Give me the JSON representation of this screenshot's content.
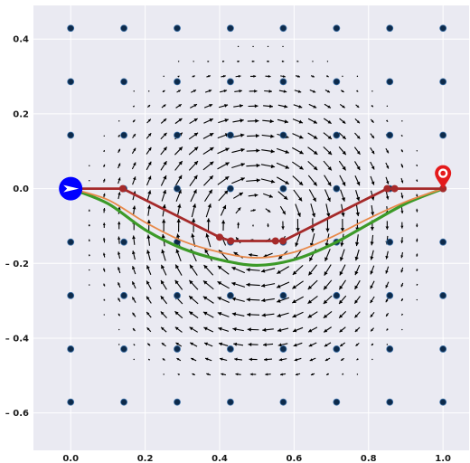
{
  "chart_data": {
    "type": "line",
    "title": "",
    "xlabel": "",
    "ylabel": "",
    "xlim": [
      -0.1,
      1.07
    ],
    "ylim": [
      -0.7,
      0.49
    ],
    "xticks": [
      0.0,
      0.2,
      0.4,
      0.6,
      0.8,
      1.0
    ],
    "xtick_labels": [
      "0.0",
      "0.2",
      "0.4",
      "0.6",
      "0.8",
      "1.0"
    ],
    "yticks": [
      0.4,
      0.2,
      0.0,
      -0.2,
      -0.4,
      -0.6
    ],
    "ytick_labels": [
      "0.4",
      "0.2",
      "0.0",
      "– 0.2",
      "– 0.4",
      "– 0.6"
    ],
    "grid": true,
    "background": "#eaeaf2",
    "start_marker": {
      "x": 0.0,
      "y": 0.0,
      "color": "#0000ff",
      "icon": "start-arrow-icon"
    },
    "goal_marker": {
      "x": 1.0,
      "y": 0.0,
      "color": "#e41a1c",
      "icon": "location-pin-icon"
    },
    "grid_points": {
      "x": [
        0.0,
        0.143,
        0.286,
        0.429,
        0.571,
        0.714,
        0.857,
        1.0
      ],
      "y": [
        0.429,
        0.286,
        0.143,
        0.0,
        -0.143,
        -0.286,
        -0.429,
        -0.571
      ],
      "color": "#0d2a4a"
    },
    "vector_field": {
      "type": "vortex",
      "center": [
        0.5,
        -0.1
      ],
      "rotation": "clockwise",
      "x_range": [
        0.05,
        0.95
      ],
      "y_range": [
        -0.5,
        0.42
      ],
      "spacing": 0.04,
      "radius": 0.35,
      "color": "#000000"
    },
    "series": [
      {
        "color": "#a52a2a",
        "style": "polyline-with-markers",
        "x": [
          0.0,
          0.14,
          0.4,
          0.43,
          0.55,
          0.57,
          0.85,
          0.87,
          1.0
        ],
        "y": [
          0.0,
          0.0,
          -0.13,
          -0.14,
          -0.14,
          -0.14,
          0.0,
          0.0,
          0.0
        ]
      },
      {
        "color": "#e8894a",
        "style": "smooth",
        "x": [
          0.0,
          0.1,
          0.2,
          0.3,
          0.4,
          0.5,
          0.6,
          0.7,
          0.8,
          0.9,
          1.0
        ],
        "y": [
          0.0,
          -0.03,
          -0.09,
          -0.14,
          -0.17,
          -0.185,
          -0.17,
          -0.13,
          -0.08,
          -0.035,
          0.0
        ]
      },
      {
        "color": "#3c9a28",
        "style": "smooth",
        "x": [
          0.0,
          0.1,
          0.2,
          0.3,
          0.4,
          0.5,
          0.6,
          0.7,
          0.8,
          0.9,
          1.0
        ],
        "y": [
          0.0,
          -0.04,
          -0.11,
          -0.16,
          -0.19,
          -0.205,
          -0.19,
          -0.15,
          -0.095,
          -0.04,
          0.0
        ]
      }
    ]
  }
}
